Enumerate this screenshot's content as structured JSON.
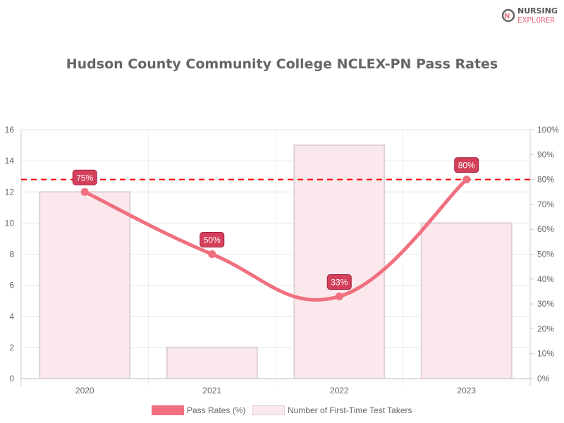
{
  "logo": {
    "line1": "NURSING",
    "line2": "EXPLORER"
  },
  "chart_data": {
    "type": "bar+line",
    "title": "Hudson County Community College NCLEX-PN Pass Rates",
    "categories": [
      "2020",
      "2021",
      "2022",
      "2023"
    ],
    "series": [
      {
        "name": "Pass Rates (%)",
        "type": "line",
        "axis": "right",
        "values": [
          75,
          50,
          33,
          80
        ],
        "labels": [
          "75%",
          "50%",
          "33%",
          "80%"
        ],
        "color": "#f07080"
      },
      {
        "name": "Number of First-Time Test Takers",
        "type": "bar",
        "axis": "left",
        "values": [
          12,
          2,
          15,
          10
        ],
        "color": "#fbe8ec",
        "border": "#e0d0d4"
      }
    ],
    "y_left": {
      "ylim": [
        0,
        16
      ],
      "ticks": [
        "0",
        "2",
        "4",
        "6",
        "8",
        "10",
        "12",
        "14",
        "16"
      ]
    },
    "y_right": {
      "ylim": [
        0,
        100
      ],
      "ticks": [
        "0%",
        "10%",
        "20%",
        "30%",
        "40%",
        "50%",
        "60%",
        "70%",
        "80%",
        "90%",
        "100%"
      ]
    },
    "reference_line": {
      "value": 80,
      "axis": "right",
      "color": "#ff0000",
      "style": "dashed"
    },
    "grid": true,
    "legend": "bottom",
    "label_color": "#d4405a"
  }
}
